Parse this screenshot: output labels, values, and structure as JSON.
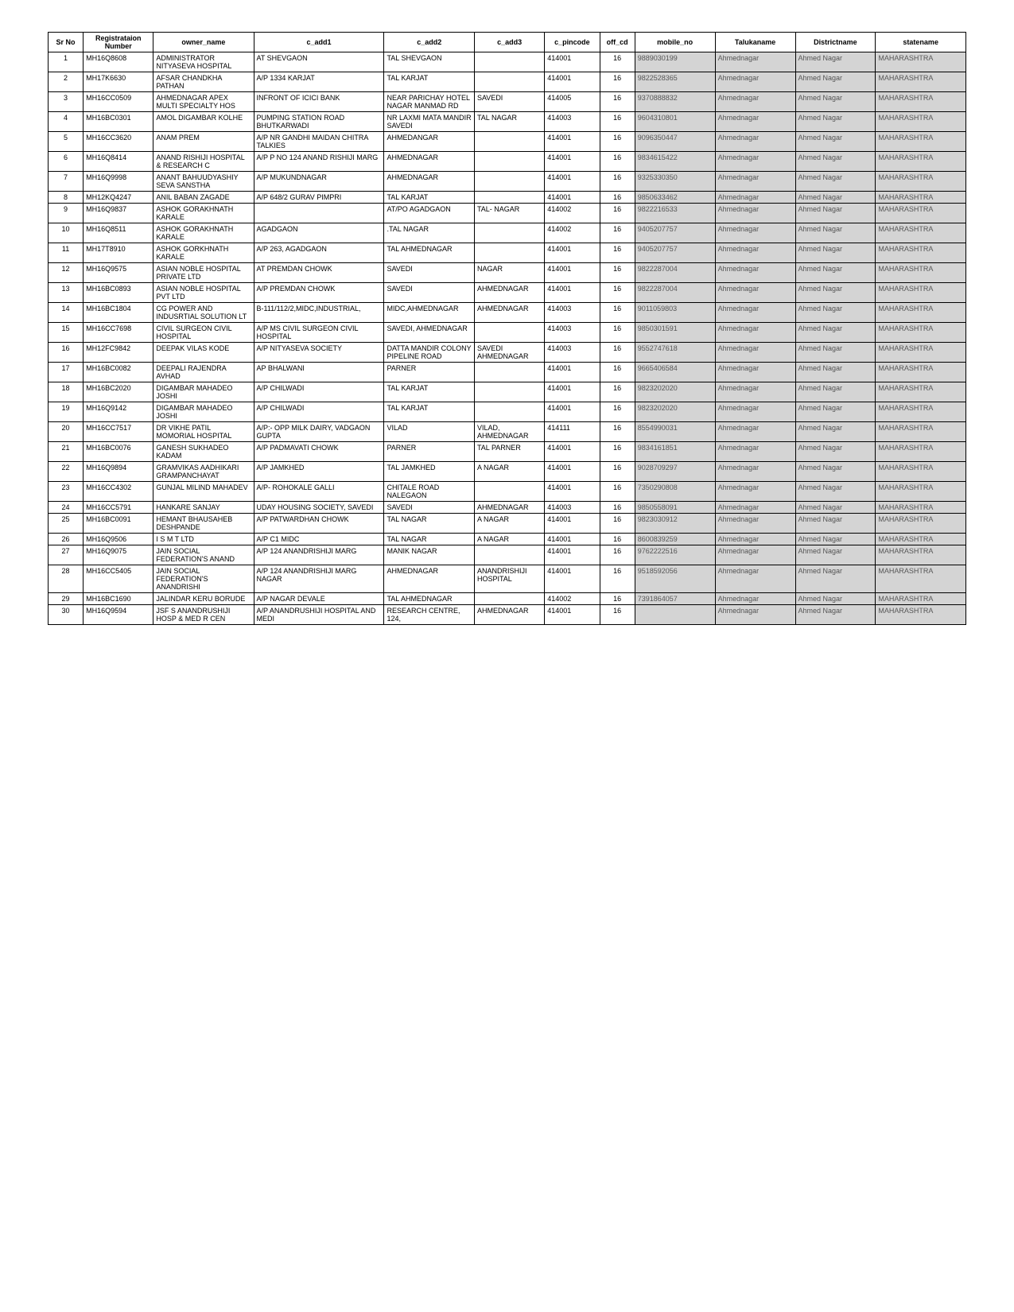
{
  "columns": [
    "Sr No",
    "Registrataion Number",
    "owner_name",
    "c_add1",
    "c_add2",
    "c_add3",
    "c_pincode",
    "off_cd",
    "mobile_no",
    "Talukaname",
    "Districtname",
    "statename"
  ],
  "masked_cols": [
    8,
    9,
    10,
    11
  ],
  "rows": [
    [
      "1",
      "MH16Q8608",
      "ADMINISTRATOR NITYASEVA HOSPITAL",
      "AT SHEVGAON",
      "TAL SHEVGAON",
      "",
      "414001",
      "16",
      "9889030199",
      "Ahmednagar",
      "Ahmed Nagar",
      "MAHARASHTRA"
    ],
    [
      "2",
      "MH17K6630",
      "AFSAR CHANDKHA PATHAN",
      "A/P 1334 KARJAT",
      "TAL KARJAT",
      "",
      "414001",
      "16",
      "9822528365",
      "Ahmednagar",
      "Ahmed Nagar",
      "MAHARASHTRA"
    ],
    [
      "3",
      "MH16CC0509",
      "AHMEDNAGAR APEX MULTI SPECIALTY HOS",
      "INFRONT OF ICICI BANK",
      "NEAR PARICHAY HOTEL NAGAR MANMAD RD",
      "SAVEDI",
      "414005",
      "16",
      "9370888832",
      "Ahmednagar",
      "Ahmed Nagar",
      "MAHARASHTRA"
    ],
    [
      "4",
      "MH16BC0301",
      "AMOL DIGAMBAR KOLHE",
      "PUMPING STATION ROAD BHUTKARWADI",
      "NR LAXMI MATA MANDIR SAVEDI",
      "TAL NAGAR",
      "414003",
      "16",
      "9604310801",
      "Ahmednagar",
      "Ahmed Nagar",
      "MAHARASHTRA"
    ],
    [
      "5",
      "MH16CC3620",
      "ANAM PREM",
      "A/P NR GANDHI MAIDAN CHITRA TALKIES",
      "AHMEDANGAR",
      "",
      "414001",
      "16",
      "9096350447",
      "Ahmednagar",
      "Ahmed Nagar",
      "MAHARASHTRA"
    ],
    [
      "6",
      "MH16Q8414",
      "ANAND RISHIJI HOSPITAL & RESEARCH C",
      "A/P P NO 124 ANAND RISHIJI MARG",
      "AHMEDNAGAR",
      "",
      "414001",
      "16",
      "9834615422",
      "Ahmednagar",
      "Ahmed Nagar",
      "MAHARASHTRA"
    ],
    [
      "7",
      "MH16Q9998",
      "ANANT BAHUUDYASHIY SEVA SANSTHA",
      "A/P MUKUNDNAGAR",
      "AHMEDNAGAR",
      "",
      "414001",
      "16",
      "9325330350",
      "Ahmednagar",
      "Ahmed Nagar",
      "MAHARASHTRA"
    ],
    [
      "8",
      "MH12KQ4247",
      "ANIL BABAN ZAGADE",
      "A/P 648/2 GURAV PIMPRI",
      "TAL KARJAT",
      "",
      "414001",
      "16",
      "9850633462",
      "Ahmednagar",
      "Ahmed Nagar",
      "MAHARASHTRA"
    ],
    [
      "9",
      "MH16Q9837",
      "ASHOK GORAKHNATH KARALE",
      "",
      "AT/PO AGADGAON",
      "TAL- NAGAR",
      "414002",
      "16",
      "9822216533",
      "Ahmednagar",
      "Ahmed Nagar",
      "MAHARASHTRA"
    ],
    [
      "10",
      "MH16Q8511",
      "ASHOK GORAKHNATH KARALE",
      "AGADGAON",
      ".TAL NAGAR",
      "",
      "414002",
      "16",
      "9405207757",
      "Ahmednagar",
      "Ahmed Nagar",
      "MAHARASHTRA"
    ],
    [
      "11",
      "MH17T8910",
      "ASHOK GORKHNATH KARALE",
      "A/P 263, AGADGAON",
      "TAL AHMEDNAGAR",
      "",
      "414001",
      "16",
      "9405207757",
      "Ahmednagar",
      "Ahmed Nagar",
      "MAHARASHTRA"
    ],
    [
      "12",
      "MH16Q9575",
      "ASIAN NOBLE HOSPITAL PRIVATE LTD",
      "AT PREMDAN CHOWK",
      "SAVEDI",
      "NAGAR",
      "414001",
      "16",
      "9822287004",
      "Ahmednagar",
      "Ahmed Nagar",
      "MAHARASHTRA"
    ],
    [
      "13",
      "MH16BC0893",
      "ASIAN NOBLE HOSPITAL PVT LTD",
      "A/P PREMDAN CHOWK",
      "SAVEDI",
      "AHMEDNAGAR",
      "414001",
      "16",
      "9822287004",
      "Ahmednagar",
      "Ahmed Nagar",
      "MAHARASHTRA"
    ],
    [
      "14",
      "MH16BC1804",
      "CG POWER AND INDUSRTIAL SOLUTION LT",
      "B-111/112/2,MIDC,INDUSTRIAL,",
      "MIDC,AHMEDNAGAR",
      "AHMEDNAGAR",
      "414003",
      "16",
      "9011059803",
      "Ahmednagar",
      "Ahmed Nagar",
      "MAHARASHTRA"
    ],
    [
      "15",
      "MH16CC7698",
      "CIVIL SURGEON CIVIL HOSPITAL",
      "A/P MS CIVIL SURGEON CIVIL HOSPITAL",
      "SAVEDI, AHMEDNAGAR",
      "",
      "414003",
      "16",
      "9850301591",
      "Ahmednagar",
      "Ahmed Nagar",
      "MAHARASHTRA"
    ],
    [
      "16",
      "MH12FC9842",
      "DEEPAK VILAS KODE",
      "A/P NITYASEVA SOCIETY",
      "DATTA MANDIR COLONY PIPELINE ROAD",
      "SAVEDI AHMEDNAGAR",
      "414003",
      "16",
      "9552747618",
      "Ahmednagar",
      "Ahmed Nagar",
      "MAHARASHTRA"
    ],
    [
      "17",
      "MH16BC0082",
      "DEEPALI RAJENDRA AVHAD",
      "AP BHALWANI",
      "PARNER",
      "",
      "414001",
      "16",
      "9665406584",
      "Ahmednagar",
      "Ahmed Nagar",
      "MAHARASHTRA"
    ],
    [
      "18",
      "MH16BC2020",
      "DIGAMBAR MAHADEO JOSHI",
      "A/P CHILWADI",
      "TAL KARJAT",
      "",
      "414001",
      "16",
      "9823202020",
      "Ahmednagar",
      "Ahmed Nagar",
      "MAHARASHTRA"
    ],
    [
      "19",
      "MH16Q9142",
      "DIGAMBAR MAHADEO JOSHI",
      "A/P CHILWADI",
      "TAL KARJAT",
      "",
      "414001",
      "16",
      "9823202020",
      "Ahmednagar",
      "Ahmed Nagar",
      "MAHARASHTRA"
    ],
    [
      "20",
      "MH16CC7517",
      "DR VIKHE PATIL MOMORIAL HOSPITAL",
      "A/P:- OPP MILK DAIRY, VADGAON GUPTA",
      "VILAD",
      "VILAD, AHMEDNAGAR",
      "414111",
      "16",
      "8554990031",
      "Ahmednagar",
      "Ahmed Nagar",
      "MAHARASHTRA"
    ],
    [
      "21",
      "MH16BC0076",
      "GANESH SUKHADEO KADAM",
      "A/P PADMAVATI CHOWK",
      "PARNER",
      "TAL PARNER",
      "414001",
      "16",
      "9834161851",
      "Ahmednagar",
      "Ahmed Nagar",
      "MAHARASHTRA"
    ],
    [
      "22",
      "MH16Q9894",
      "GRAMVIKAS AADHIKARI GRAMPANCHAYAT",
      "A/P JAMKHED",
      "TAL JAMKHED",
      "A NAGAR",
      "414001",
      "16",
      "9028709297",
      "Ahmednagar",
      "Ahmed Nagar",
      "MAHARASHTRA"
    ],
    [
      "23",
      "MH16CC4302",
      "GUNJAL MILIND MAHADEV",
      "A/P- ROHOKALE GALLI",
      "CHITALE ROAD NALEGAON",
      "",
      "414001",
      "16",
      "7350290808",
      "Ahmednagar",
      "Ahmed Nagar",
      "MAHARASHTRA"
    ],
    [
      "24",
      "MH16CC5791",
      "HANKARE SANJAY",
      "UDAY HOUSING SOCIETY, SAVEDI",
      "SAVEDI",
      "AHMEDNAGAR",
      "414003",
      "16",
      "9850558091",
      "Ahmednagar",
      "Ahmed Nagar",
      "MAHARASHTRA"
    ],
    [
      "25",
      "MH16BC0091",
      "HEMANT BHAUSAHEB DESHPANDE",
      "A/P PATWARDHAN CHOWK",
      "TAL NAGAR",
      "A NAGAR",
      "414001",
      "16",
      "9823030912",
      "Ahmednagar",
      "Ahmed Nagar",
      "MAHARASHTRA"
    ],
    [
      "26",
      "MH16Q9506",
      "I S M T LTD",
      "A/P C1 MIDC",
      "TAL NAGAR",
      "A NAGAR",
      "414001",
      "16",
      "8600839259",
      "Ahmednagar",
      "Ahmed Nagar",
      "MAHARASHTRA"
    ],
    [
      "27",
      "MH16Q9075",
      "JAIN SOCIAL FEDERATION'S ANAND",
      "A/P 124 ANANDRISHIJI MARG",
      "MANIK NAGAR",
      "",
      "414001",
      "16",
      "9762222516",
      "Ahmednagar",
      "Ahmed Nagar",
      "MAHARASHTRA"
    ],
    [
      "28",
      "MH16CC5405",
      "JAIN SOCIAL FEDERATION'S ANANDRISHI",
      "A/P 124 ANANDRISHIJI MARG NAGAR",
      "AHMEDNAGAR",
      "ANANDRISHIJI HOSPITAL",
      "414001",
      "16",
      "9518592056",
      "Ahmednagar",
      "Ahmed Nagar",
      "MAHARASHTRA"
    ],
    [
      "29",
      "MH16BC1690",
      "JALINDAR KERU BORUDE",
      "A/P NAGAR DEVALE",
      "TAL AHMEDNAGAR",
      "",
      "414002",
      "16",
      "7391864057",
      "Ahmednagar",
      "Ahmed Nagar",
      "MAHARASHTRA"
    ],
    [
      "30",
      "MH16Q9594",
      "JSF S ANANDRUSHIJI HOSP & MED R CEN",
      "A/P ANANDRUSHIJI HOSPITAL AND MEDI",
      "RESEARCH CENTRE, 124,",
      "AHMEDNAGAR",
      "414001",
      "16",
      "",
      "Ahmednagar",
      "Ahmed Nagar",
      "MAHARASHTRA"
    ]
  ]
}
